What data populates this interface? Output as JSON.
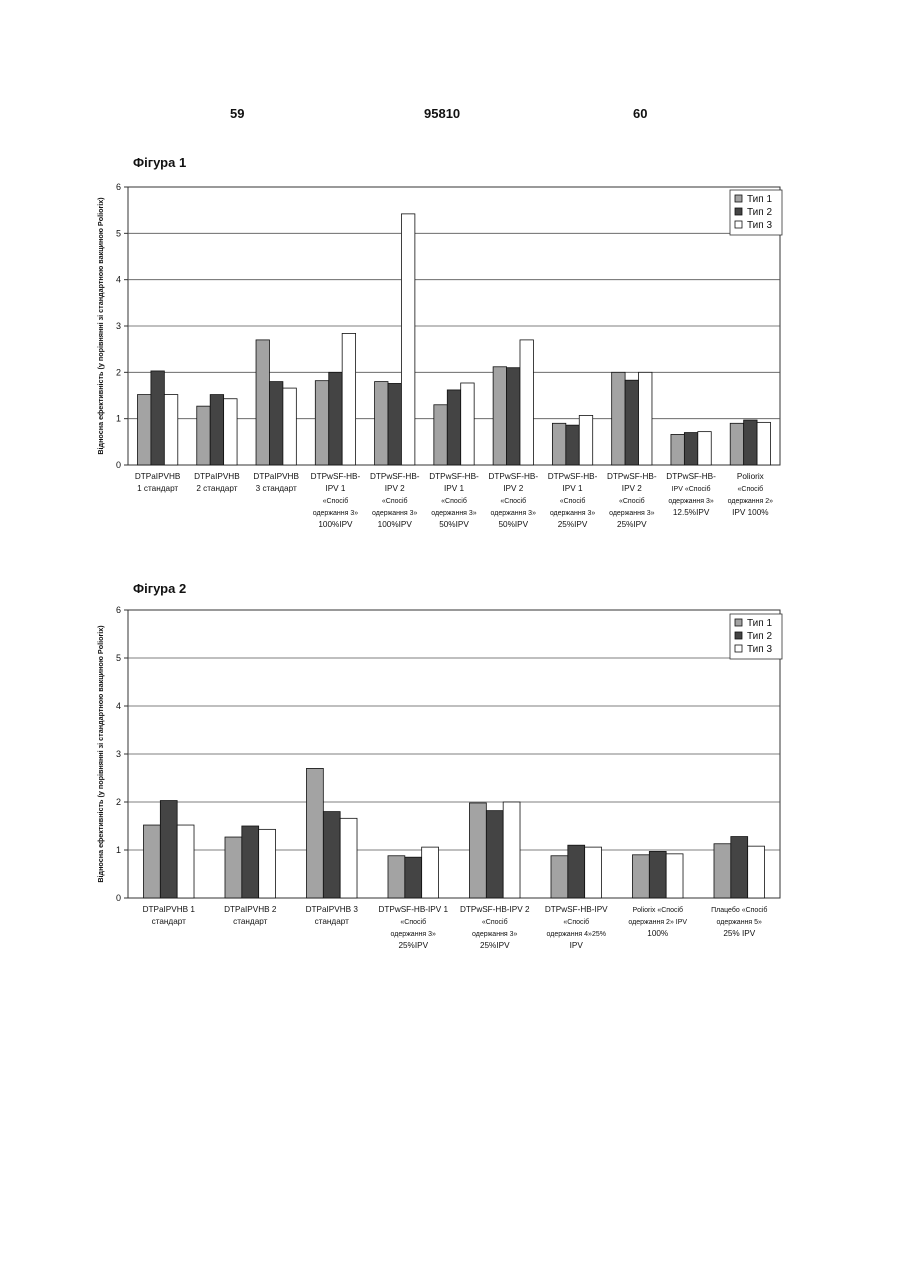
{
  "header": {
    "page_left": "59",
    "patent_number": "95810",
    "page_right": "60"
  },
  "colors": {
    "type1": "#a3a3a3",
    "type2": "#444444",
    "type3": "#ffffff",
    "grid": "#555555"
  },
  "chart_data": [
    {
      "type": "bar",
      "title": "Фігура 1",
      "ylabel": "Відносна ефективність (у порівнянні зі стандартною вакциною Poliorix)",
      "ylim": [
        0,
        6
      ],
      "yticks": [
        "0",
        "1",
        "2",
        "3",
        "4",
        "5",
        "6"
      ],
      "grid": true,
      "legend_position": "top-right",
      "categories": [
        [
          "DTPaIPVHB",
          "1 стандарт"
        ],
        [
          "DTPaIPVHB",
          "2 стандарт"
        ],
        [
          "DTPaIPVHB",
          "3 стандарт"
        ],
        [
          "DTPwSF-HB-",
          "IPV 1",
          "«Спосіб",
          "одержання 3»",
          "100%IPV"
        ],
        [
          "DTPwSF-HB-",
          "IPV 2",
          "«Спосіб",
          "одержання 3»",
          "100%IPV"
        ],
        [
          "DTPwSF-HB-",
          "IPV 1",
          "«Спосіб",
          "одержання 3»",
          "50%IPV"
        ],
        [
          "DTPwSF-HB-",
          "IPV 2",
          "«Спосіб",
          "одержання 3»",
          "50%IPV"
        ],
        [
          "DTPwSF-HB-",
          "IPV 1",
          "«Спосіб",
          "одержання 3»",
          "25%IPV"
        ],
        [
          "DTPwSF-HB-",
          "IPV 2",
          "«Спосіб",
          "одержання 3»",
          "25%IPV"
        ],
        [
          "DTPwSF-HB-",
          "IPV «Спосіб",
          "одержання 3»",
          "12.5%IPV"
        ],
        [
          "Poliorix",
          "«Спосіб",
          "одержання 2»",
          "IPV 100%"
        ]
      ],
      "series": [
        {
          "name": "Тип 1",
          "values": [
            1.52,
            1.27,
            2.7,
            1.82,
            1.8,
            1.3,
            2.12,
            0.9,
            2.0,
            0.66,
            0.9
          ]
        },
        {
          "name": "Тип 2",
          "values": [
            2.03,
            1.52,
            1.8,
            2.0,
            1.76,
            1.62,
            2.1,
            0.86,
            1.83,
            0.7,
            0.97
          ]
        },
        {
          "name": "Тип 3",
          "values": [
            1.52,
            1.43,
            1.66,
            2.84,
            5.42,
            1.77,
            2.7,
            1.07,
            2.0,
            0.72,
            0.92
          ]
        }
      ]
    },
    {
      "type": "bar",
      "title": "Фігура 2",
      "ylabel": "Відносна ефективність (у порівнянні зі стандартною вакциною Poliorix)",
      "ylim": [
        0,
        6
      ],
      "yticks": [
        "0",
        "1",
        "2",
        "3",
        "4",
        "5",
        "6"
      ],
      "grid": true,
      "legend_position": "top-right",
      "categories": [
        [
          "DTPaIPVHB 1",
          "стандарт"
        ],
        [
          "DTPaIPVHB 2",
          "стандарт"
        ],
        [
          "DTPaIPVHB 3",
          "стандарт"
        ],
        [
          "DTPwSF-HB-IPV 1",
          "«Спосіб",
          "одержання 3»",
          "25%IPV"
        ],
        [
          "DTPwSF-HB-IPV 2",
          "«Спосіб",
          "одержання 3»",
          "25%IPV"
        ],
        [
          "DTPwSF-HB-IPV",
          "«Спосіб",
          "одержання 4»25%",
          "IPV"
        ],
        [
          "Poliorix «Спосіб",
          "одержання 2» IPV",
          "100%"
        ],
        [
          "Плацебо «Спосіб",
          "одержання 5»",
          "25% IPV"
        ]
      ],
      "series": [
        {
          "name": "Тип 1",
          "values": [
            1.52,
            1.27,
            2.7,
            0.88,
            1.98,
            0.88,
            0.9,
            1.13
          ]
        },
        {
          "name": "Тип 2",
          "values": [
            2.03,
            1.5,
            1.8,
            0.85,
            1.82,
            1.1,
            0.97,
            1.28
          ]
        },
        {
          "name": "Тип 3",
          "values": [
            1.52,
            1.43,
            1.66,
            1.06,
            2.0,
            1.06,
            0.92,
            1.08
          ]
        }
      ]
    }
  ]
}
